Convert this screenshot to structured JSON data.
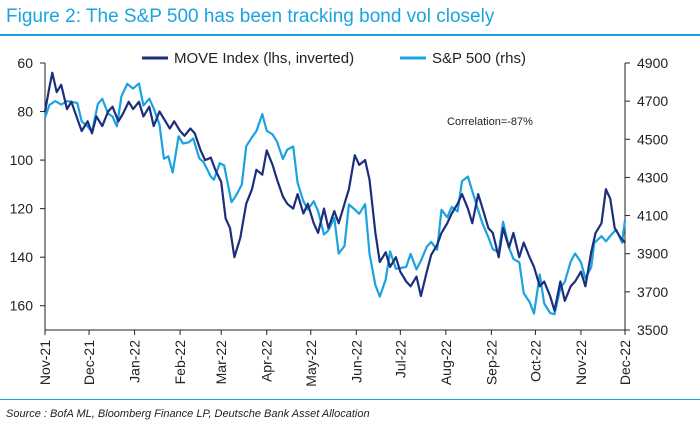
{
  "header": {
    "title": "Figure 2: The S&P 500 has been tracking bond vol closely"
  },
  "footer": {
    "source": "Source : BofA ML, Bloomberg Finance LP, Deutsche Bank Asset Allocation"
  },
  "colors": {
    "title": "#1aa3e0",
    "move": "#1b2f7c",
    "spx": "#1aa3e0"
  },
  "chart_data": {
    "type": "line",
    "title": "Figure 2: The S&P 500 has been tracking bond vol closely",
    "annotation": "Correlation=-87%",
    "x_tick_labels": [
      "Nov-21",
      "Dec-21",
      "Jan-22",
      "Feb-22",
      "Mar-22",
      "Apr-22",
      "May-22",
      "Jun-22",
      "Jul-22",
      "Aug-22",
      "Sep-22",
      "Oct-22",
      "Nov-22",
      "Dec-22"
    ],
    "x_tick_dates": [
      "2021-11-01",
      "2021-12-01",
      "2022-01-01",
      "2022-02-01",
      "2022-03-01",
      "2022-04-01",
      "2022-05-01",
      "2022-06-01",
      "2022-07-01",
      "2022-08-01",
      "2022-09-01",
      "2022-10-01",
      "2022-11-01",
      "2022-12-01"
    ],
    "x_range": [
      "2021-11-01",
      "2022-12-01"
    ],
    "y_left": {
      "label": "MOVE Index (lhs, inverted)",
      "range": [
        60,
        170
      ],
      "inverted": true,
      "ticks": [
        60,
        80,
        100,
        120,
        140,
        160
      ]
    },
    "y_right": {
      "label": "S&P 500 (rhs)",
      "range": [
        3500,
        4900
      ],
      "ticks": [
        3500,
        3700,
        3900,
        4100,
        4300,
        4500,
        4700,
        4900
      ]
    },
    "legend_position": "top-center",
    "grid": false,
    "series": [
      {
        "name": "MOVE Index (lhs, inverted)",
        "axis": "left",
        "color": "#1b2f7c",
        "points": [
          [
            "2021-11-01",
            80
          ],
          [
            "2021-11-04",
            70
          ],
          [
            "2021-11-06",
            64
          ],
          [
            "2021-11-09",
            72
          ],
          [
            "2021-11-12",
            69
          ],
          [
            "2021-11-16",
            79
          ],
          [
            "2021-11-19",
            76
          ],
          [
            "2021-11-23",
            83
          ],
          [
            "2021-11-26",
            88
          ],
          [
            "2021-11-30",
            84
          ],
          [
            "2021-12-03",
            89
          ],
          [
            "2021-12-06",
            82
          ],
          [
            "2021-12-10",
            86
          ],
          [
            "2021-12-14",
            80
          ],
          [
            "2021-12-17",
            78
          ],
          [
            "2021-12-21",
            84
          ],
          [
            "2021-12-24",
            81
          ],
          [
            "2021-12-28",
            76
          ],
          [
            "2021-12-31",
            79
          ],
          [
            "2022-01-04",
            76
          ],
          [
            "2022-01-07",
            82
          ],
          [
            "2022-01-11",
            78
          ],
          [
            "2022-01-14",
            86
          ],
          [
            "2022-01-18",
            80
          ],
          [
            "2022-01-21",
            83
          ],
          [
            "2022-01-25",
            87
          ],
          [
            "2022-01-28",
            84
          ],
          [
            "2022-02-01",
            88
          ],
          [
            "2022-02-04",
            90
          ],
          [
            "2022-02-08",
            87
          ],
          [
            "2022-02-11",
            89
          ],
          [
            "2022-02-15",
            96
          ],
          [
            "2022-02-18",
            100
          ],
          [
            "2022-02-22",
            99
          ],
          [
            "2022-02-25",
            104
          ],
          [
            "2022-03-01",
            109
          ],
          [
            "2022-03-04",
            124
          ],
          [
            "2022-03-07",
            128
          ],
          [
            "2022-03-10",
            140
          ],
          [
            "2022-03-14",
            132
          ],
          [
            "2022-03-18",
            118
          ],
          [
            "2022-03-22",
            112
          ],
          [
            "2022-03-25",
            104
          ],
          [
            "2022-03-29",
            106
          ],
          [
            "2022-04-01",
            96
          ],
          [
            "2022-04-05",
            102
          ],
          [
            "2022-04-08",
            108
          ],
          [
            "2022-04-12",
            115
          ],
          [
            "2022-04-15",
            118
          ],
          [
            "2022-04-19",
            120
          ],
          [
            "2022-04-22",
            114
          ],
          [
            "2022-04-26",
            122
          ],
          [
            "2022-04-29",
            118
          ],
          [
            "2022-05-03",
            126
          ],
          [
            "2022-05-06",
            130
          ],
          [
            "2022-05-10",
            120
          ],
          [
            "2022-05-13",
            128
          ],
          [
            "2022-05-17",
            121
          ],
          [
            "2022-05-20",
            126
          ],
          [
            "2022-05-24",
            118
          ],
          [
            "2022-05-27",
            112
          ],
          [
            "2022-05-31",
            98
          ],
          [
            "2022-06-03",
            102
          ],
          [
            "2022-06-07",
            100
          ],
          [
            "2022-06-10",
            108
          ],
          [
            "2022-06-14",
            130
          ],
          [
            "2022-06-17",
            142
          ],
          [
            "2022-06-21",
            138
          ],
          [
            "2022-06-24",
            144
          ],
          [
            "2022-06-28",
            140
          ],
          [
            "2022-07-01",
            146
          ],
          [
            "2022-07-05",
            150
          ],
          [
            "2022-07-08",
            152
          ],
          [
            "2022-07-12",
            148
          ],
          [
            "2022-07-15",
            156
          ],
          [
            "2022-07-19",
            146
          ],
          [
            "2022-07-22",
            139
          ],
          [
            "2022-07-26",
            135
          ],
          [
            "2022-07-29",
            130
          ],
          [
            "2022-08-02",
            126
          ],
          [
            "2022-08-05",
            122
          ],
          [
            "2022-08-09",
            118
          ],
          [
            "2022-08-12",
            114
          ],
          [
            "2022-08-16",
            120
          ],
          [
            "2022-08-19",
            126
          ],
          [
            "2022-08-23",
            114
          ],
          [
            "2022-08-26",
            120
          ],
          [
            "2022-08-30",
            128
          ],
          [
            "2022-09-02",
            130
          ],
          [
            "2022-09-06",
            140
          ],
          [
            "2022-09-09",
            128
          ],
          [
            "2022-09-13",
            136
          ],
          [
            "2022-09-16",
            130
          ],
          [
            "2022-09-20",
            140
          ],
          [
            "2022-09-23",
            134
          ],
          [
            "2022-09-27",
            140
          ],
          [
            "2022-09-30",
            144
          ],
          [
            "2022-10-04",
            152
          ],
          [
            "2022-10-07",
            150
          ],
          [
            "2022-10-11",
            156
          ],
          [
            "2022-10-14",
            162
          ],
          [
            "2022-10-18",
            150
          ],
          [
            "2022-10-21",
            158
          ],
          [
            "2022-10-25",
            152
          ],
          [
            "2022-10-28",
            150
          ],
          [
            "2022-11-01",
            146
          ],
          [
            "2022-11-04",
            152
          ],
          [
            "2022-11-08",
            138
          ],
          [
            "2022-11-11",
            130
          ],
          [
            "2022-11-15",
            126
          ],
          [
            "2022-11-18",
            112
          ],
          [
            "2022-11-21",
            116
          ],
          [
            "2022-11-24",
            128
          ],
          [
            "2022-11-28",
            132
          ],
          [
            "2022-12-01",
            134
          ]
        ]
      },
      {
        "name": "S&P 500 (rhs)",
        "axis": "right",
        "color": "#1aa3e0",
        "points": [
          [
            "2021-11-01",
            4613
          ],
          [
            "2021-11-04",
            4680
          ],
          [
            "2021-11-08",
            4700
          ],
          [
            "2021-11-12",
            4682
          ],
          [
            "2021-11-16",
            4700
          ],
          [
            "2021-11-19",
            4697
          ],
          [
            "2021-11-23",
            4690
          ],
          [
            "2021-11-26",
            4594
          ],
          [
            "2021-11-30",
            4567
          ],
          [
            "2021-12-03",
            4538
          ],
          [
            "2021-12-07",
            4686
          ],
          [
            "2021-12-10",
            4712
          ],
          [
            "2021-12-14",
            4634
          ],
          [
            "2021-12-17",
            4620
          ],
          [
            "2021-12-20",
            4568
          ],
          [
            "2021-12-23",
            4725
          ],
          [
            "2021-12-27",
            4791
          ],
          [
            "2021-12-31",
            4766
          ],
          [
            "2022-01-04",
            4793
          ],
          [
            "2022-01-07",
            4677
          ],
          [
            "2022-01-11",
            4713
          ],
          [
            "2022-01-14",
            4662
          ],
          [
            "2022-01-18",
            4577
          ],
          [
            "2022-01-21",
            4398
          ],
          [
            "2022-01-24",
            4410
          ],
          [
            "2022-01-27",
            4326
          ],
          [
            "2022-01-31",
            4516
          ],
          [
            "2022-02-03",
            4478
          ],
          [
            "2022-02-07",
            4484
          ],
          [
            "2022-02-10",
            4504
          ],
          [
            "2022-02-14",
            4401
          ],
          [
            "2022-02-17",
            4380
          ],
          [
            "2022-02-22",
            4304
          ],
          [
            "2022-02-24",
            4288
          ],
          [
            "2022-02-28",
            4374
          ],
          [
            "2022-03-03",
            4363
          ],
          [
            "2022-03-08",
            4170
          ],
          [
            "2022-03-11",
            4204
          ],
          [
            "2022-03-15",
            4262
          ],
          [
            "2022-03-18",
            4463
          ],
          [
            "2022-03-22",
            4511
          ],
          [
            "2022-03-25",
            4543
          ],
          [
            "2022-03-29",
            4632
          ],
          [
            "2022-04-01",
            4545
          ],
          [
            "2022-04-05",
            4525
          ],
          [
            "2022-04-08",
            4488
          ],
          [
            "2022-04-12",
            4397
          ],
          [
            "2022-04-15",
            4446
          ],
          [
            "2022-04-19",
            4462
          ],
          [
            "2022-04-22",
            4272
          ],
          [
            "2022-04-26",
            4175
          ],
          [
            "2022-04-29",
            4132
          ],
          [
            "2022-05-03",
            4175
          ],
          [
            "2022-05-06",
            4123
          ],
          [
            "2022-05-10",
            4001
          ],
          [
            "2022-05-13",
            4023
          ],
          [
            "2022-05-17",
            4088
          ],
          [
            "2022-05-20",
            3901
          ],
          [
            "2022-05-24",
            3941
          ],
          [
            "2022-05-27",
            4158
          ],
          [
            "2022-05-31",
            4132
          ],
          [
            "2022-06-03",
            4109
          ],
          [
            "2022-06-07",
            4160
          ],
          [
            "2022-06-10",
            3900
          ],
          [
            "2022-06-14",
            3735
          ],
          [
            "2022-06-17",
            3675
          ],
          [
            "2022-06-21",
            3765
          ],
          [
            "2022-06-24",
            3912
          ],
          [
            "2022-06-28",
            3821
          ],
          [
            "2022-07-01",
            3825
          ],
          [
            "2022-07-05",
            3831
          ],
          [
            "2022-07-08",
            3899
          ],
          [
            "2022-07-12",
            3818
          ],
          [
            "2022-07-15",
            3863
          ],
          [
            "2022-07-19",
            3937
          ],
          [
            "2022-07-22",
            3962
          ],
          [
            "2022-07-26",
            3921
          ],
          [
            "2022-07-29",
            4130
          ],
          [
            "2022-08-02",
            4091
          ],
          [
            "2022-08-05",
            4145
          ],
          [
            "2022-08-09",
            4122
          ],
          [
            "2022-08-12",
            4280
          ],
          [
            "2022-08-16",
            4305
          ],
          [
            "2022-08-19",
            4228
          ],
          [
            "2022-08-23",
            4128
          ],
          [
            "2022-08-26",
            4057
          ],
          [
            "2022-08-30",
            3986
          ],
          [
            "2022-09-02",
            3924
          ],
          [
            "2022-09-06",
            3908
          ],
          [
            "2022-09-09",
            4067
          ],
          [
            "2022-09-13",
            3932
          ],
          [
            "2022-09-16",
            3873
          ],
          [
            "2022-09-20",
            3855
          ],
          [
            "2022-09-23",
            3693
          ],
          [
            "2022-09-27",
            3647
          ],
          [
            "2022-09-30",
            3586
          ],
          [
            "2022-10-04",
            3791
          ],
          [
            "2022-10-07",
            3639
          ],
          [
            "2022-10-11",
            3589
          ],
          [
            "2022-10-14",
            3583
          ],
          [
            "2022-10-18",
            3720
          ],
          [
            "2022-10-21",
            3752
          ],
          [
            "2022-10-25",
            3859
          ],
          [
            "2022-10-28",
            3901
          ],
          [
            "2022-11-01",
            3856
          ],
          [
            "2022-11-04",
            3771
          ],
          [
            "2022-11-08",
            3828
          ],
          [
            "2022-11-10",
            3956
          ],
          [
            "2022-11-15",
            3992
          ],
          [
            "2022-11-18",
            3965
          ],
          [
            "2022-11-22",
            4003
          ],
          [
            "2022-11-25",
            4026
          ],
          [
            "2022-11-29",
            3958
          ],
          [
            "2022-12-01",
            4076
          ]
        ]
      }
    ]
  }
}
